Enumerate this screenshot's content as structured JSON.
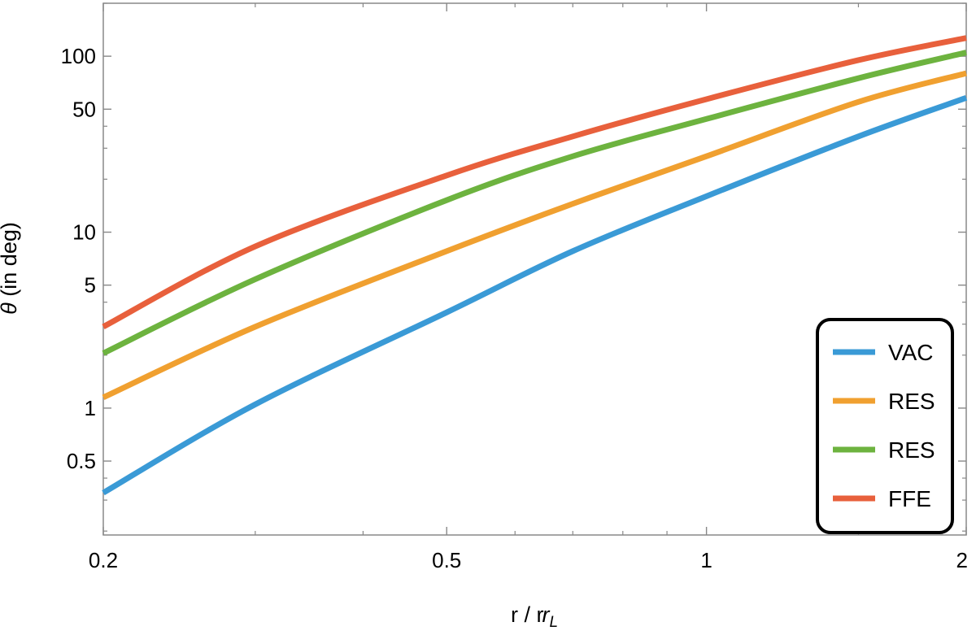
{
  "chart_data": {
    "type": "line",
    "xscale": "log",
    "yscale": "log",
    "xlim": [
      0.2,
      2
    ],
    "ylim": [
      0.19,
      200
    ],
    "xlabel": {
      "main": "r / r",
      "sub": "L"
    },
    "ylabel": {
      "symbol": "θ",
      "text": " (in deg)"
    },
    "x_ticks": [
      {
        "value": 0.2,
        "label": "0.2"
      },
      {
        "value": 0.5,
        "label": "0.5"
      },
      {
        "value": 1,
        "label": "1"
      },
      {
        "value": 2,
        "label": "2"
      }
    ],
    "y_ticks": [
      {
        "value": 0.5,
        "label": "0.5"
      },
      {
        "value": 1,
        "label": "1"
      },
      {
        "value": 5,
        "label": "5"
      },
      {
        "value": 10,
        "label": "10"
      },
      {
        "value": 50,
        "label": "50"
      },
      {
        "value": 100,
        "label": "100"
      }
    ],
    "grid": false,
    "legend_position": "bottom-right",
    "series": [
      {
        "name": "VAC",
        "color": "#3a9ad6",
        "x": [
          0.2,
          0.3,
          0.5,
          0.7,
          1,
          1.5,
          2
        ],
        "y": [
          0.33,
          1.05,
          3.5,
          7.8,
          16,
          35,
          58
        ]
      },
      {
        "name": "RES",
        "color": "#f0a030",
        "x": [
          0.2,
          0.3,
          0.5,
          0.7,
          1,
          1.5,
          2
        ],
        "y": [
          1.15,
          2.9,
          7.8,
          14.5,
          27,
          55,
          80
        ]
      },
      {
        "name": "RES",
        "color": "#6db33f",
        "x": [
          0.2,
          0.3,
          0.5,
          0.7,
          1,
          1.5,
          2
        ],
        "y": [
          2.05,
          5.4,
          15.2,
          27,
          44,
          75,
          105
        ]
      },
      {
        "name": "FFE",
        "color": "#e8603c",
        "x": [
          0.2,
          0.3,
          0.5,
          0.7,
          1,
          1.5,
          2
        ],
        "y": [
          2.9,
          8.3,
          21,
          35,
          57,
          95,
          127
        ]
      }
    ]
  }
}
